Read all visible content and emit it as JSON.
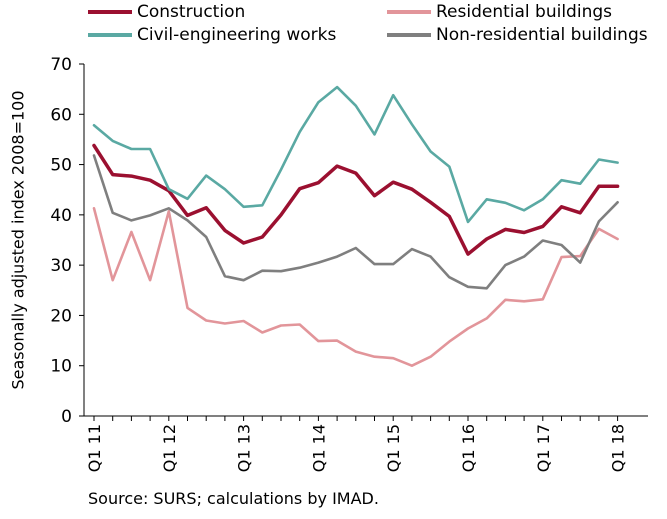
{
  "legend": {
    "items": [
      {
        "label": "Construction",
        "color": "#9b1030"
      },
      {
        "label": "Residential buildings",
        "color": "#e2959a"
      },
      {
        "label": "Civil-engineering works",
        "color": "#5aa9a3"
      },
      {
        "label": "Non-residential buildings",
        "color": "#7f7f7f"
      }
    ]
  },
  "source": "Source: SURS; calculations by IMAD.",
  "chart_data": {
    "type": "line",
    "ylabel": "Seasonally adjusted index 2008=100",
    "xlabel": "",
    "ylim": [
      0,
      70
    ],
    "yticks": [
      0,
      10,
      20,
      30,
      40,
      50,
      60,
      70
    ],
    "grid": false,
    "legend_position": "top",
    "x": [
      "Q1 11",
      "Q2 11",
      "Q3 11",
      "Q4 11",
      "Q1 12",
      "Q2 12",
      "Q3 12",
      "Q4 12",
      "Q1 13",
      "Q2 13",
      "Q3 13",
      "Q4 13",
      "Q1 14",
      "Q2 14",
      "Q3 14",
      "Q4 14",
      "Q1 15",
      "Q2 15",
      "Q3 15",
      "Q4 15",
      "Q1 16",
      "Q2 16",
      "Q3 16",
      "Q4 16",
      "Q1 17",
      "Q2 17",
      "Q3 17",
      "Q4 17",
      "Q1 18"
    ],
    "x_tick_labels": [
      "Q1 11",
      "Q1 12",
      "Q1 13",
      "Q1 14",
      "Q1 15",
      "Q1 16",
      "Q1 17",
      "Q1 18"
    ],
    "series": [
      {
        "name": "Construction",
        "color": "#9b1030",
        "values": [
          53.8,
          48.0,
          47.7,
          46.9,
          44.8,
          39.9,
          41.4,
          36.9,
          34.4,
          35.6,
          40.0,
          45.2,
          46.4,
          49.7,
          48.3,
          43.8,
          46.5,
          45.1,
          42.5,
          39.7,
          32.2,
          35.2,
          37.1,
          36.5,
          37.7,
          41.6,
          40.4,
          45.7,
          45.7
        ]
      },
      {
        "name": "Residential buildings",
        "color": "#e2959a",
        "values": [
          41.3,
          27.0,
          36.6,
          27.0,
          40.7,
          21.5,
          19.0,
          18.4,
          18.9,
          16.6,
          18.0,
          18.2,
          14.9,
          15.0,
          12.8,
          11.8,
          11.5,
          10.0,
          11.8,
          14.8,
          17.4,
          19.4,
          23.1,
          22.8,
          23.2,
          31.6,
          31.8,
          37.2,
          35.2
        ]
      },
      {
        "name": "Civil-engineering works",
        "color": "#5aa9a3",
        "values": [
          57.8,
          54.7,
          53.1,
          53.1,
          45.1,
          43.2,
          47.8,
          45.1,
          41.6,
          41.9,
          49.0,
          56.5,
          62.4,
          65.4,
          61.7,
          56.0,
          63.8,
          58.0,
          52.6,
          49.6,
          38.6,
          43.1,
          42.4,
          40.9,
          43.1,
          46.9,
          46.2,
          51.0,
          50.4
        ]
      },
      {
        "name": "Non-residential buildings",
        "color": "#7f7f7f",
        "values": [
          51.8,
          40.4,
          38.9,
          39.9,
          41.3,
          38.9,
          35.6,
          27.8,
          27.0,
          28.9,
          28.8,
          29.5,
          30.5,
          31.7,
          33.4,
          30.2,
          30.2,
          33.2,
          31.7,
          27.6,
          25.7,
          25.4,
          30.0,
          31.7,
          34.9,
          34.0,
          30.5,
          38.7,
          42.5
        ]
      }
    ]
  }
}
